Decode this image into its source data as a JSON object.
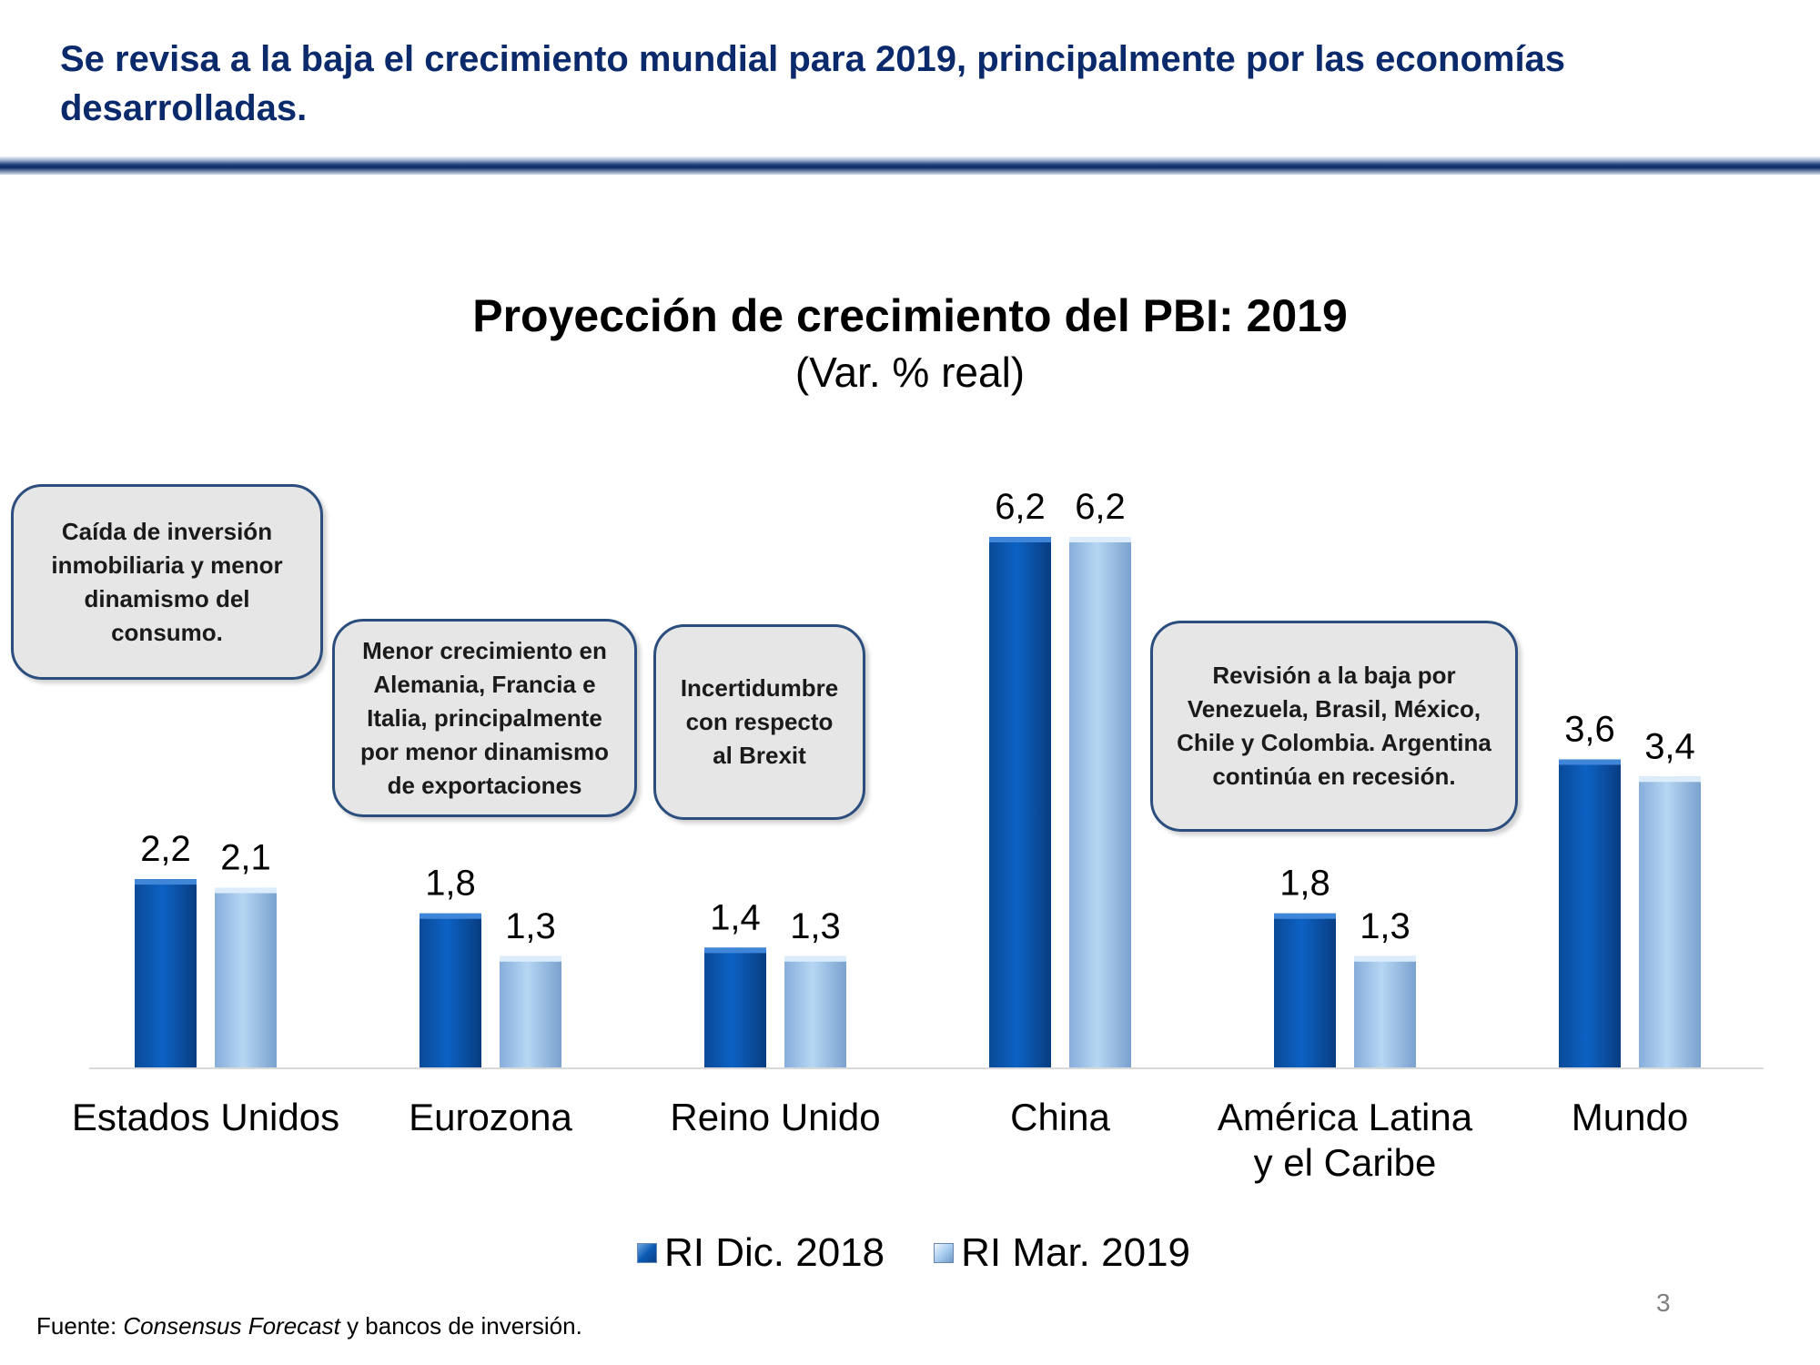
{
  "slide": {
    "title": "Se revisa a la baja el crecimiento mundial para 2019, principalmente por las economías desarrolladas.",
    "page_number": "3",
    "source_prefix": "Fuente: ",
    "source_italic": "Consensus Forecast",
    "source_suffix": " y bancos de inversión."
  },
  "callouts": [
    {
      "text": "Caída de  inversión\ninmobiliaria y menor\ndinamismo del\nconsumo."
    },
    {
      "text": "Menor crecimiento en\nAlemania, Francia e\nItalia, principalmente\npor menor dinamismo\nde exportaciones"
    },
    {
      "text": "Incertidumbre\ncon respecto\nal Brexit"
    },
    {
      "text": "Revisión a la baja por\nVenezuela, Brasil, México,\nChile y Colombia. Argentina\ncontinúa en recesión."
    }
  ],
  "colors": {
    "series1": "#0a58b0",
    "series2": "#a9cdef",
    "callout_border": "#2b4e7e",
    "title": "#0b2a6b"
  },
  "chart_data": {
    "type": "bar",
    "title": "Proyección de crecimiento del PBI: 2019",
    "subtitle": "(Var. % real)",
    "categories": [
      [
        "Estados Unidos"
      ],
      [
        "Eurozona"
      ],
      [
        "Reino Unido"
      ],
      [
        "China"
      ],
      [
        "América Latina",
        "y el Caribe"
      ],
      [
        "Mundo"
      ]
    ],
    "series": [
      {
        "name": "RI Dic. 2018",
        "values": [
          2.2,
          1.8,
          1.4,
          6.2,
          1.8,
          3.6
        ],
        "labels": [
          "2,2",
          "1,8",
          "1,4",
          "6,2",
          "1,8",
          "3,6"
        ]
      },
      {
        "name": "RI Mar. 2019",
        "values": [
          2.1,
          1.3,
          1.3,
          6.2,
          1.3,
          3.4
        ],
        "labels": [
          "2,1",
          "1,3",
          "1,3",
          "6,2",
          "1,3",
          "3,4"
        ]
      }
    ],
    "ylim": [
      0,
      6.2
    ],
    "legend": "bottom",
    "grid": false
  }
}
